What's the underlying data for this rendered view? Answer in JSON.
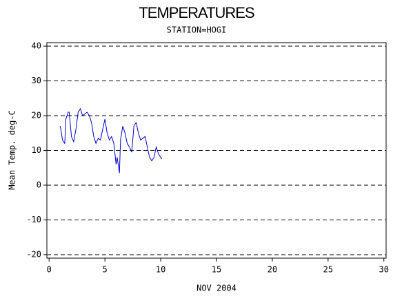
{
  "chart_data": {
    "type": "line",
    "title": "TEMPERATURES",
    "subtitle": "STATION=HOGI",
    "x_label": "NOV 2004",
    "y_label": "Mean Temp. deg-C",
    "x": [
      1.0,
      1.2,
      1.4,
      1.5,
      1.7,
      1.8,
      2.0,
      2.2,
      2.4,
      2.6,
      2.8,
      3.0,
      3.2,
      3.4,
      3.6,
      3.8,
      4.0,
      4.2,
      4.4,
      4.6,
      4.8,
      5.0,
      5.2,
      5.4,
      5.6,
      5.8,
      6.0,
      6.1,
      6.3,
      6.4,
      6.6,
      6.8,
      7.0,
      7.2,
      7.4,
      7.6,
      7.8,
      8.0,
      8.2,
      8.4,
      8.6,
      8.8,
      9.0,
      9.2,
      9.4,
      9.6,
      9.8,
      10.0,
      10.1
    ],
    "series": [
      {
        "name": "Mean Temp",
        "color": "#0000cc",
        "values": [
          17,
          13,
          12,
          19,
          21,
          21,
          14,
          12.5,
          16,
          21,
          22,
          20,
          20.5,
          21,
          20,
          18,
          14,
          12,
          13.5,
          13,
          16,
          19,
          15,
          13,
          14,
          12,
          6,
          8,
          3.5,
          13,
          17,
          15,
          12,
          11,
          9.5,
          17,
          18,
          15,
          13,
          13.5,
          14,
          11,
          8,
          7,
          8,
          11,
          9,
          8,
          7.5
        ]
      }
    ],
    "xlim": [
      -0.2,
      30.2
    ],
    "xticks": [
      0,
      5,
      10,
      15,
      20,
      25,
      30
    ],
    "ylim": [
      -21,
      41
    ],
    "yticks": [
      -20,
      -10,
      0,
      10,
      20,
      30,
      40
    ],
    "grid": true
  }
}
